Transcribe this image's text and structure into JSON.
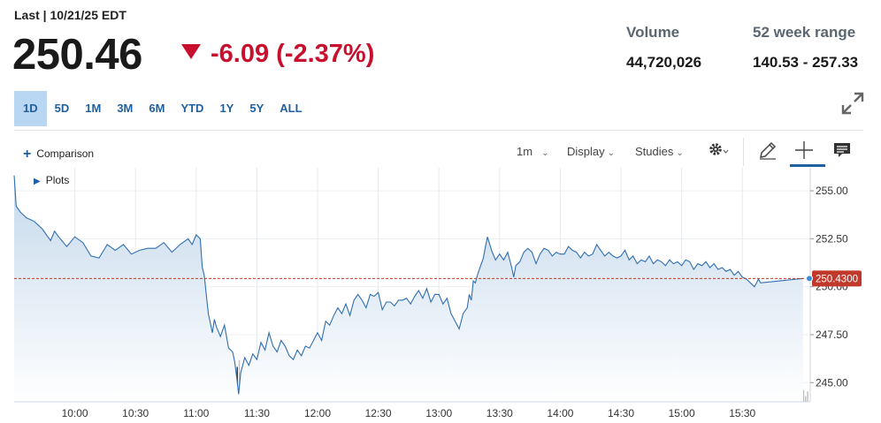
{
  "header": {
    "last_label": "Last | 10/21/25 EDT",
    "price": "250.46",
    "change": "-6.09 (-2.37%)",
    "down_color": "#c8102e",
    "volume_label": "Volume",
    "volume_value": "44,720,026",
    "range_label": "52 week range",
    "range_value": "140.53 - 257.33"
  },
  "range_tabs": [
    {
      "label": "1D",
      "active": true
    },
    {
      "label": "5D",
      "active": false
    },
    {
      "label": "1M",
      "active": false
    },
    {
      "label": "3M",
      "active": false
    },
    {
      "label": "6M",
      "active": false
    },
    {
      "label": "YTD",
      "active": false
    },
    {
      "label": "1Y",
      "active": false
    },
    {
      "label": "5Y",
      "active": false
    },
    {
      "label": "ALL",
      "active": false
    }
  ],
  "toolbar": {
    "comparison_label": "Comparison",
    "plots_label": "Plots",
    "interval_label": "1m",
    "display_label": "Display",
    "studies_label": "Studies",
    "icons": [
      "expand-icon",
      "gear-icon",
      "pencil-icon",
      "crosshair-icon",
      "comment-icon"
    ]
  },
  "chart_data": {
    "type": "area",
    "x_ticks": [
      "10:00",
      "10:30",
      "11:00",
      "11:30",
      "12:00",
      "12:30",
      "13:00",
      "13:30",
      "14:00",
      "14:30",
      "15:00",
      "15:30"
    ],
    "y_ticks": [
      "255.00",
      "252.50",
      "250.00",
      "247.50",
      "245.00"
    ],
    "ylim": [
      244.0,
      256.2
    ],
    "x_range": [
      "09:30",
      "16:00"
    ],
    "last_value_label": "250.4300",
    "last_value": 250.43,
    "reference_line": 250.43,
    "line_color": "#2f6fb0",
    "label_color": "#c0392b",
    "grid": true,
    "price_points": [
      [
        0,
        255.8
      ],
      [
        1,
        254.2
      ],
      [
        3,
        253.9
      ],
      [
        6,
        253.6
      ],
      [
        10,
        253.4
      ],
      [
        14,
        253.0
      ],
      [
        18,
        252.4
      ],
      [
        20,
        252.9
      ],
      [
        22,
        252.6
      ],
      [
        26,
        252.1
      ],
      [
        30,
        252.6
      ],
      [
        34,
        252.3
      ],
      [
        38,
        251.6
      ],
      [
        42,
        251.5
      ],
      [
        46,
        252.2
      ],
      [
        50,
        251.9
      ],
      [
        54,
        252.2
      ],
      [
        58,
        251.7
      ],
      [
        62,
        251.9
      ],
      [
        66,
        252.0
      ],
      [
        70,
        252.0
      ],
      [
        74,
        252.3
      ],
      [
        78,
        251.8
      ],
      [
        82,
        252.2
      ],
      [
        86,
        252.5
      ],
      [
        88,
        252.2
      ],
      [
        90,
        252.7
      ],
      [
        92,
        252.5
      ],
      [
        93,
        251.0
      ],
      [
        94,
        250.6
      ],
      [
        95,
        249.6
      ],
      [
        96,
        248.6
      ],
      [
        98,
        247.6
      ],
      [
        99,
        248.3
      ],
      [
        100,
        247.9
      ],
      [
        102,
        247.4
      ],
      [
        104,
        248.0
      ],
      [
        106,
        246.8
      ],
      [
        108,
        246.6
      ],
      [
        109,
        246.1
      ],
      [
        110,
        245.3
      ],
      [
        111,
        244.4
      ],
      [
        112,
        245.5
      ],
      [
        114,
        246.3
      ],
      [
        116,
        245.9
      ],
      [
        118,
        246.5
      ],
      [
        120,
        246.2
      ],
      [
        122,
        247.1
      ],
      [
        124,
        246.7
      ],
      [
        126,
        247.6
      ],
      [
        128,
        246.9
      ],
      [
        130,
        246.6
      ],
      [
        132,
        247.2
      ],
      [
        134,
        246.9
      ],
      [
        136,
        246.4
      ],
      [
        138,
        246.2
      ],
      [
        140,
        246.7
      ],
      [
        142,
        246.4
      ],
      [
        144,
        246.9
      ],
      [
        146,
        246.8
      ],
      [
        148,
        247.2
      ],
      [
        150,
        247.6
      ],
      [
        152,
        247.2
      ],
      [
        154,
        248.2
      ],
      [
        156,
        248.0
      ],
      [
        158,
        248.5
      ],
      [
        160,
        248.9
      ],
      [
        162,
        248.6
      ],
      [
        164,
        249.1
      ],
      [
        166,
        248.5
      ],
      [
        168,
        249.3
      ],
      [
        170,
        249.6
      ],
      [
        172,
        249.3
      ],
      [
        174,
        248.9
      ],
      [
        176,
        249.6
      ],
      [
        178,
        249.5
      ],
      [
        180,
        249.7
      ],
      [
        182,
        248.8
      ],
      [
        184,
        249.2
      ],
      [
        186,
        249.2
      ],
      [
        188,
        249.0
      ],
      [
        190,
        249.3
      ],
      [
        192,
        249.3
      ],
      [
        194,
        249.4
      ],
      [
        196,
        249.1
      ],
      [
        198,
        249.5
      ],
      [
        200,
        249.8
      ],
      [
        202,
        249.4
      ],
      [
        204,
        249.9
      ],
      [
        206,
        249.2
      ],
      [
        208,
        249.6
      ],
      [
        210,
        249.6
      ],
      [
        212,
        249.1
      ],
      [
        214,
        249.4
      ],
      [
        216,
        248.6
      ],
      [
        218,
        248.2
      ],
      [
        220,
        247.8
      ],
      [
        222,
        248.6
      ],
      [
        224,
        248.9
      ],
      [
        225,
        249.6
      ],
      [
        226,
        249.3
      ],
      [
        227,
        250.3
      ],
      [
        228,
        250.2
      ],
      [
        229,
        250.6
      ],
      [
        230,
        250.9
      ],
      [
        232,
        251.5
      ],
      [
        233,
        252.1
      ],
      [
        234,
        252.6
      ],
      [
        236,
        251.9
      ],
      [
        238,
        251.4
      ],
      [
        240,
        251.7
      ],
      [
        242,
        251.4
      ],
      [
        244,
        251.8
      ],
      [
        246,
        251.0
      ],
      [
        247,
        250.5
      ],
      [
        248,
        251.1
      ],
      [
        250,
        251.3
      ],
      [
        252,
        251.8
      ],
      [
        254,
        252.0
      ],
      [
        256,
        251.8
      ],
      [
        258,
        251.2
      ],
      [
        260,
        251.7
      ],
      [
        262,
        252.0
      ],
      [
        264,
        251.9
      ],
      [
        266,
        251.6
      ],
      [
        268,
        251.8
      ],
      [
        270,
        251.7
      ],
      [
        272,
        251.7
      ],
      [
        274,
        252.1
      ],
      [
        276,
        251.9
      ],
      [
        278,
        251.8
      ],
      [
        280,
        251.5
      ],
      [
        282,
        251.8
      ],
      [
        284,
        251.6
      ],
      [
        286,
        251.7
      ],
      [
        288,
        252.2
      ],
      [
        290,
        251.9
      ],
      [
        292,
        251.6
      ],
      [
        294,
        251.8
      ],
      [
        296,
        251.6
      ],
      [
        298,
        251.5
      ],
      [
        300,
        251.6
      ],
      [
        302,
        251.9
      ],
      [
        304,
        251.4
      ],
      [
        306,
        251.6
      ],
      [
        308,
        251.2
      ],
      [
        310,
        251.4
      ],
      [
        312,
        251.3
      ],
      [
        314,
        251.6
      ],
      [
        316,
        251.2
      ],
      [
        318,
        251.4
      ],
      [
        320,
        251.3
      ],
      [
        322,
        251.1
      ],
      [
        324,
        251.4
      ],
      [
        326,
        251.2
      ],
      [
        328,
        251.3
      ],
      [
        330,
        251.1
      ],
      [
        332,
        251.4
      ],
      [
        334,
        251.3
      ],
      [
        336,
        250.9
      ],
      [
        338,
        251.2
      ],
      [
        340,
        251.1
      ],
      [
        342,
        251.3
      ],
      [
        344,
        251.0
      ],
      [
        346,
        251.2
      ],
      [
        348,
        250.9
      ],
      [
        350,
        251.0
      ],
      [
        352,
        250.8
      ],
      [
        354,
        250.9
      ],
      [
        356,
        250.6
      ],
      [
        358,
        250.8
      ],
      [
        360,
        250.5
      ],
      [
        362,
        250.4
      ],
      [
        364,
        250.2
      ],
      [
        366,
        250.0
      ],
      [
        368,
        250.4
      ],
      [
        369,
        250.2
      ],
      [
        390,
        250.43
      ]
    ]
  }
}
